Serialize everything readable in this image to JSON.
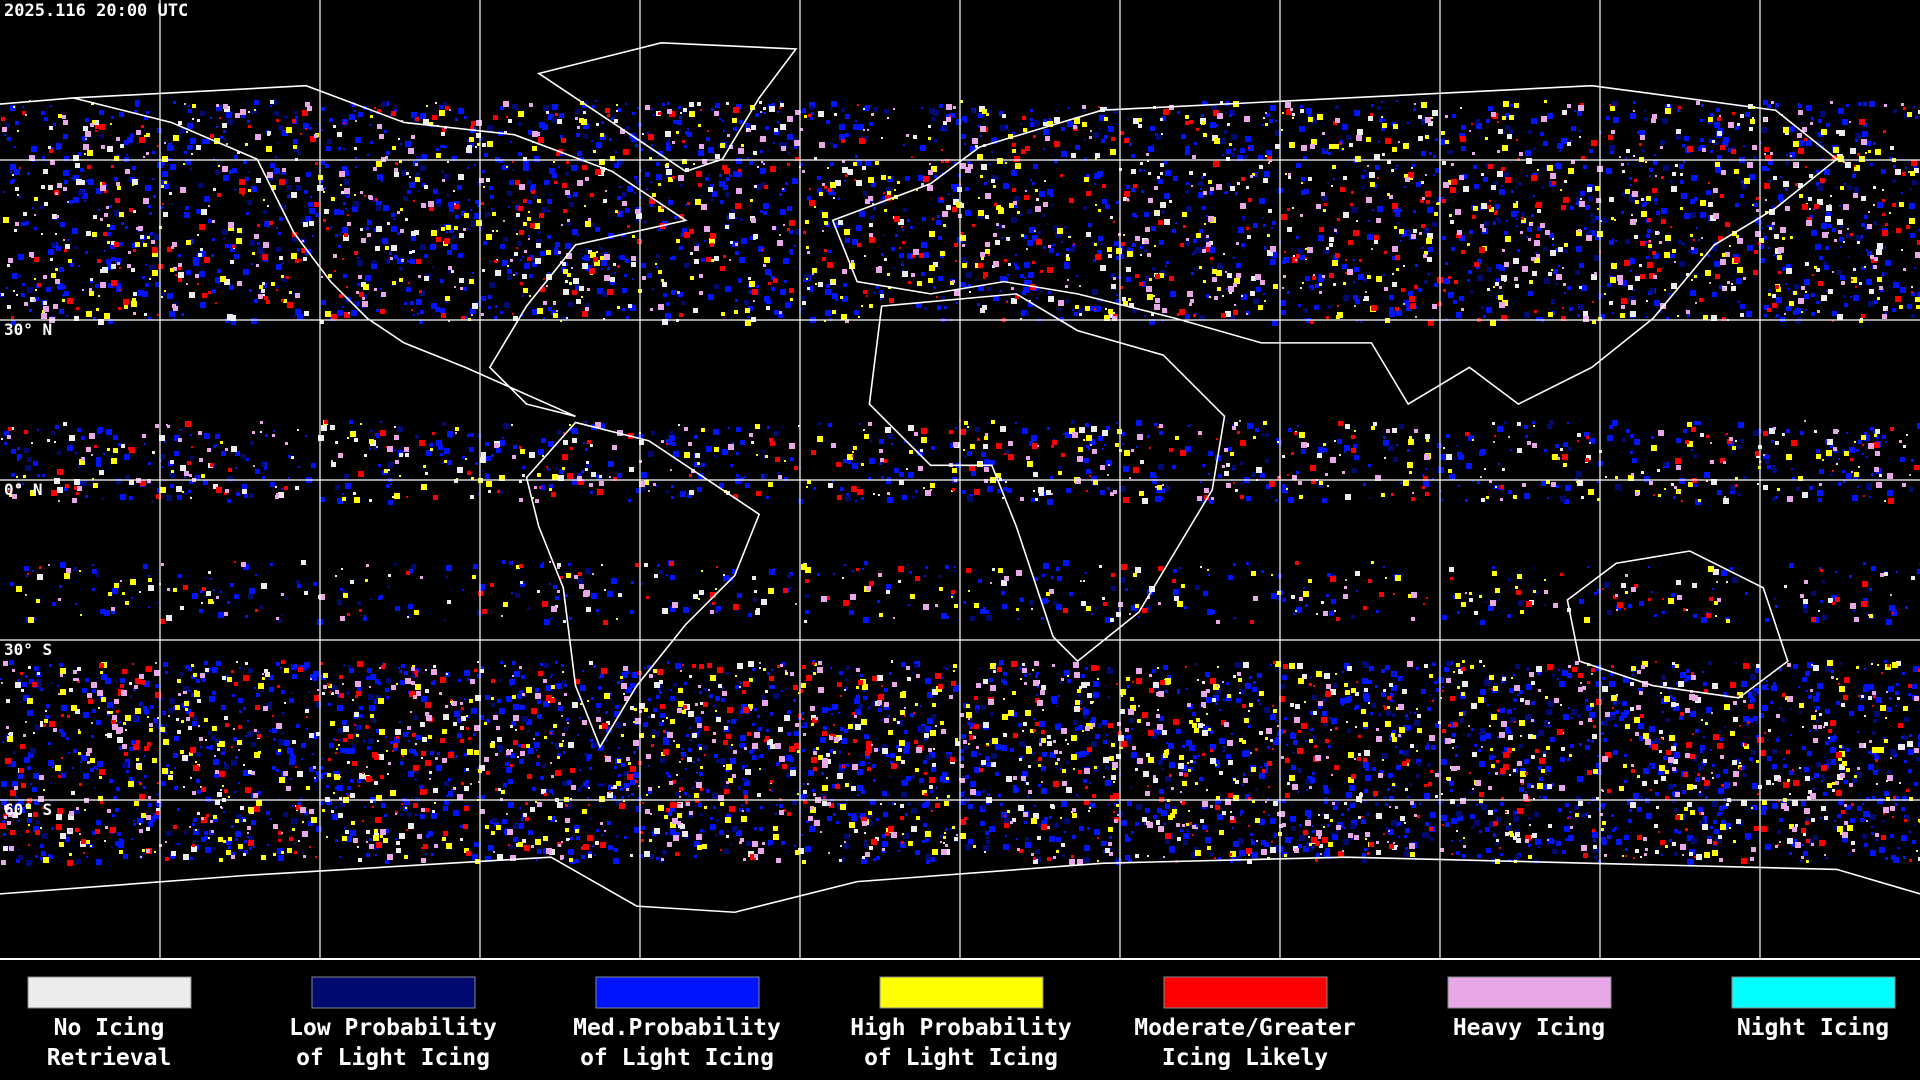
{
  "timestamp": "2025.116 20:00 UTC",
  "latitude_labels": [
    "30° N",
    "0° N",
    "30° S",
    "60° S"
  ],
  "legend": [
    {
      "color": "#ececec",
      "label": [
        "No Icing",
        "Retrieval"
      ]
    },
    {
      "color": "#000a70",
      "label": [
        "Low Probability",
        "of Light Icing"
      ]
    },
    {
      "color": "#0014ff",
      "label": [
        "Med.Probability",
        "of Light Icing"
      ]
    },
    {
      "color": "#ffff00",
      "label": [
        "High Probability",
        "of Light Icing"
      ]
    },
    {
      "color": "#ff0000",
      "label": [
        "Moderate/Greater",
        "Icing Likely"
      ]
    },
    {
      "color": "#e8a8e8",
      "label": [
        "Heavy Icing",
        ""
      ]
    },
    {
      "color": "#00ffff",
      "label": [
        "Night Icing",
        ""
      ]
    }
  ]
}
